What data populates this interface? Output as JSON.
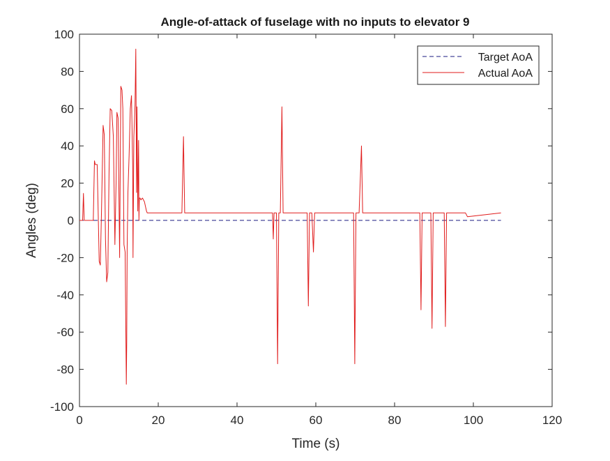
{
  "chart_data": {
    "type": "line",
    "title": "Angle-of-attack of fuselage with no inputs to elevator 9",
    "xlabel": "Time (s)",
    "ylabel": "Angles (deg)",
    "xlim": [
      0,
      120
    ],
    "ylim": [
      -100,
      100
    ],
    "xticks": [
      0,
      20,
      40,
      60,
      80,
      100,
      120
    ],
    "yticks": [
      -100,
      -80,
      -60,
      -40,
      -20,
      0,
      20,
      40,
      60,
      80,
      100
    ],
    "grid": false,
    "legend_position": "top-right",
    "series": [
      {
        "name": "Target AoA",
        "color": "#1a1a80",
        "style": "dashed",
        "x": [
          0,
          107
        ],
        "y": [
          0,
          0
        ]
      },
      {
        "name": "Actual AoA",
        "color": "#e01b1b",
        "style": "solid",
        "x": [
          0,
          0.8,
          1.0,
          1.2,
          3.5,
          3.8,
          4.0,
          4.5,
          5.0,
          5.3,
          5.6,
          6.0,
          6.3,
          6.6,
          6.9,
          7.2,
          7.5,
          7.8,
          8.2,
          8.6,
          9.0,
          9.3,
          9.5,
          9.8,
          10.2,
          10.5,
          10.8,
          11.0,
          11.3,
          11.6,
          11.9,
          12.0,
          12.1,
          12.3,
          12.6,
          12.9,
          13.2,
          13.5,
          13.6,
          13.8,
          14.1,
          14.3,
          14.5,
          14.6,
          14.8,
          15.0,
          15.1,
          15.2,
          15.4,
          15.6,
          16.0,
          16.5,
          17.0,
          17.2,
          17.5,
          20.0,
          23.0,
          26.0,
          26.4,
          26.7,
          27.0,
          30.0,
          34.0,
          34.6,
          35.0,
          38.0,
          39.6,
          40.0,
          45.0,
          49.0,
          49.2,
          49.4,
          50.0,
          50.3,
          50.6,
          51.0,
          51.4,
          51.7,
          52.0,
          55.0,
          57.8,
          58.1,
          58.4,
          59.0,
          59.4,
          59.7,
          60.0,
          65.0,
          69.6,
          69.9,
          70.2,
          71.0,
          71.6,
          71.9,
          72.2,
          75.0,
          80.0,
          86.4,
          86.7,
          87.0,
          88.0,
          89.2,
          89.5,
          89.8,
          91.0,
          92.6,
          92.9,
          93.2,
          98.0,
          98.5,
          107.0
        ],
        "y": [
          0,
          0,
          14.5,
          0,
          0,
          32,
          30,
          30,
          -22,
          -24,
          5,
          51,
          46,
          -10,
          -33,
          -28,
          25,
          60,
          59,
          45,
          -13,
          20,
          58,
          55,
          -20,
          72,
          70,
          60,
          -13,
          -17,
          -88,
          -65,
          -15,
          15,
          35,
          60,
          67,
          30,
          -20,
          45,
          62,
          92,
          15,
          61,
          5,
          43,
          0,
          12,
          12,
          11,
          12,
          10,
          5,
          4,
          4,
          4,
          4,
          4,
          45,
          4,
          4,
          4,
          4,
          4,
          4,
          4,
          4,
          4,
          4,
          4,
          -10,
          4,
          4,
          -77,
          4,
          4,
          61,
          4,
          4,
          4,
          4,
          -46,
          4,
          4,
          -17,
          4,
          4,
          4,
          4,
          -77,
          4,
          4,
          40,
          4,
          4,
          4,
          4,
          4,
          -48,
          4,
          4,
          4,
          -58,
          4,
          4,
          4,
          -57,
          4,
          4,
          2,
          4
        ]
      }
    ]
  }
}
